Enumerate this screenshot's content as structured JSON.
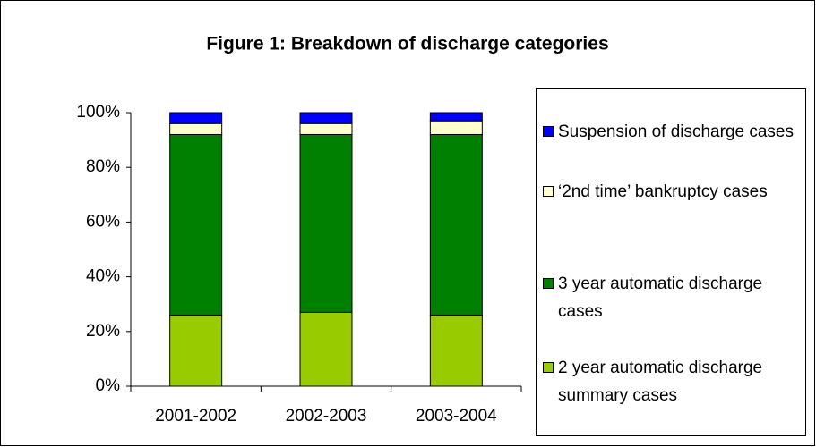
{
  "chart_data": {
    "type": "stacked_bar",
    "title": "Figure 1: Breakdown of discharge categories",
    "categories": [
      "2001-2002",
      "2002-2003",
      "2003-2004"
    ],
    "series": [
      {
        "name": "2 year automatic discharge summary cases",
        "color": "#99cc00",
        "values": [
          26,
          27,
          26
        ]
      },
      {
        "name": "3 year automatic discharge cases",
        "color": "#008000",
        "values": [
          66,
          65,
          66
        ]
      },
      {
        "name": "‘2nd time’ bankruptcy cases",
        "color": "#ffffcc",
        "values": [
          4,
          4,
          5
        ]
      },
      {
        "name": "Suspension of discharge cases",
        "color": "#0000ff",
        "values": [
          4,
          4,
          3
        ]
      }
    ],
    "ylim": [
      0,
      100
    ],
    "yticks": [
      {
        "value": 0,
        "label": "0%"
      },
      {
        "value": 20,
        "label": "20%"
      },
      {
        "value": 40,
        "label": "40%"
      },
      {
        "value": 60,
        "label": "60%"
      },
      {
        "value": 80,
        "label": "80%"
      },
      {
        "value": 100,
        "label": "100%"
      }
    ],
    "legend": "right"
  }
}
